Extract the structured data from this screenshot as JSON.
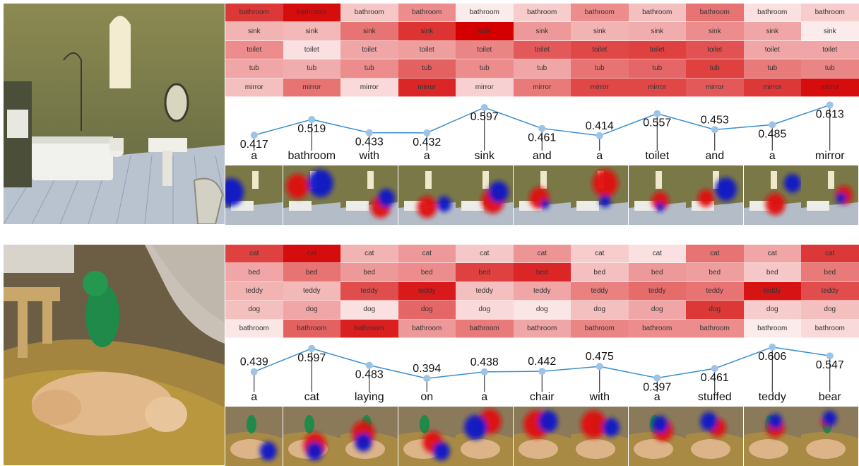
{
  "colors": {
    "line": "#3a8fd0",
    "point": "#9dc3e6",
    "heat_high": "#d40000",
    "heat_low": "#ffffff",
    "blob_red": "#e01010",
    "blob_blue": "#1018c8"
  },
  "panels": [
    {
      "id": "bathroom",
      "image": {
        "name": "bathroom-photo",
        "kind": "bathroom"
      },
      "words": [
        "a",
        "bathroom",
        "with",
        "a",
        "sink",
        "and",
        "a",
        "toilet",
        "and",
        "a",
        "mirror"
      ],
      "concepts": [
        "bathroom",
        "sink",
        "toilet",
        "tub",
        "mirror"
      ],
      "heat": [
        [
          0.78,
          0.3,
          0.45,
          0.35,
          0.25
        ],
        [
          0.95,
          0.28,
          0.12,
          0.32,
          0.55
        ],
        [
          0.22,
          0.55,
          0.35,
          0.45,
          0.15
        ],
        [
          0.45,
          0.8,
          0.38,
          0.62,
          0.85
        ],
        [
          0.08,
          1.0,
          0.48,
          0.45,
          0.18
        ],
        [
          0.2,
          0.4,
          0.65,
          0.35,
          0.52
        ],
        [
          0.45,
          0.3,
          0.72,
          0.55,
          0.72
        ],
        [
          0.25,
          0.32,
          0.75,
          0.6,
          0.72
        ],
        [
          0.55,
          0.45,
          0.68,
          0.75,
          0.65
        ],
        [
          0.12,
          0.35,
          0.35,
          0.52,
          0.78
        ],
        [
          0.2,
          0.08,
          0.35,
          0.48,
          0.95
        ]
      ],
      "chart_data": {
        "type": "line",
        "categories": [
          "a",
          "bathroom",
          "with",
          "a",
          "sink",
          "and",
          "a",
          "toilet",
          "and",
          "a",
          "mirror"
        ],
        "values": [
          0.417,
          0.519,
          0.433,
          0.432,
          0.597,
          0.461,
          0.414,
          0.557,
          0.453,
          0.485,
          0.613
        ],
        "value_labels": [
          "0.417",
          "0.519",
          "0.433",
          "0.432",
          "0.597",
          "0.461",
          "0.414",
          "0.557",
          "0.453",
          "0.485",
          "0.613"
        ],
        "label_position": [
          "below-left",
          "below",
          "below",
          "below",
          "below",
          "below",
          "above",
          "below",
          "above",
          "below",
          "below"
        ],
        "ylim": [
          0.39,
          0.62
        ]
      },
      "attention_maps": [
        {
          "red": [],
          "blue": [
            [
              0.1,
              0.45,
              0.45
            ]
          ]
        },
        {
          "red": [
            [
              0.25,
              0.35,
              0.4
            ]
          ],
          "blue": [
            [
              0.65,
              0.3,
              0.45
            ]
          ]
        },
        {
          "red": [
            [
              0.7,
              0.7,
              0.35
            ]
          ],
          "blue": [
            [
              0.8,
              0.55,
              0.3
            ]
          ]
        },
        {
          "red": [
            [
              0.5,
              0.7,
              0.35
            ]
          ],
          "blue": [
            [
              0.8,
              0.65,
              0.25
            ]
          ]
        },
        {
          "red": [
            [
              0.65,
              0.6,
              0.4
            ]
          ],
          "blue": [
            [
              0.75,
              0.45,
              0.35
            ]
          ]
        },
        {
          "red": [
            [
              0.45,
              0.55,
              0.35
            ]
          ],
          "blue": [
            [
              0.55,
              0.65,
              0.15
            ]
          ]
        },
        {
          "red": [
            [
              0.6,
              0.3,
              0.45
            ]
          ],
          "blue": [
            [
              0.6,
              0.6,
              0.2
            ]
          ]
        },
        {
          "red": [
            [
              0.55,
              0.6,
              0.3
            ]
          ],
          "blue": [
            [
              0.55,
              0.7,
              0.15
            ]
          ]
        },
        {
          "red": [
            [
              0.35,
              0.55,
              0.28
            ]
          ],
          "blue": [
            [
              0.7,
              0.4,
              0.38
            ]
          ]
        },
        {
          "red": [
            [
              0.55,
              0.65,
              0.35
            ]
          ],
          "blue": [
            [
              0.85,
              0.3,
              0.3
            ]
          ]
        },
        {
          "red": [
            [
              0.75,
              0.5,
              0.3
            ]
          ],
          "blue": [
            [
              0.7,
              0.55,
              0.18
            ]
          ]
        }
      ]
    },
    {
      "id": "cat",
      "image": {
        "name": "cat-photo",
        "kind": "cat"
      },
      "words": [
        "a",
        "cat",
        "laying",
        "on",
        "a",
        "chair",
        "with",
        "a",
        "stuffed",
        "teddy",
        "bear"
      ],
      "concepts": [
        "cat",
        "bed",
        "teddy",
        "dog",
        "bathroom"
      ],
      "heat": [
        [
          0.75,
          0.35,
          0.3,
          0.25,
          0.1
        ],
        [
          0.95,
          0.55,
          0.28,
          0.35,
          0.62
        ],
        [
          0.3,
          0.4,
          0.7,
          0.12,
          0.88
        ],
        [
          0.4,
          0.45,
          0.9,
          0.6,
          0.4
        ],
        [
          0.22,
          0.75,
          0.25,
          0.15,
          0.52
        ],
        [
          0.42,
          0.85,
          0.35,
          0.1,
          0.35
        ],
        [
          0.2,
          0.25,
          0.5,
          0.25,
          0.48
        ],
        [
          0.12,
          0.4,
          0.58,
          0.35,
          0.45
        ],
        [
          0.55,
          0.38,
          0.55,
          0.78,
          0.45
        ],
        [
          0.35,
          0.22,
          0.92,
          0.2,
          0.08
        ],
        [
          0.78,
          0.52,
          0.7,
          0.25,
          0.15
        ]
      ],
      "chart_data": {
        "type": "line",
        "categories": [
          "a",
          "cat",
          "laying",
          "on",
          "a",
          "chair",
          "with",
          "a",
          "stuffed",
          "teddy",
          "bear"
        ],
        "values": [
          0.439,
          0.597,
          0.483,
          0.394,
          0.438,
          0.442,
          0.475,
          0.397,
          0.461,
          0.606,
          0.547
        ],
        "value_labels": [
          "0.439",
          "0.597",
          "0.483",
          "0.394",
          "0.438",
          "0.442",
          "0.475",
          "0.397",
          "0.461",
          "0.606",
          "0.547"
        ],
        "label_position": [
          "above",
          "below",
          "below",
          "above",
          "above",
          "above",
          "above",
          "below",
          "below",
          "below",
          "below"
        ],
        "ylim": [
          0.38,
          0.62
        ]
      },
      "attention_maps": [
        {
          "red": [],
          "blue": [
            [
              0.75,
              0.75,
              0.3
            ]
          ]
        },
        {
          "red": [
            [
              0.55,
              0.65,
              0.4
            ]
          ],
          "blue": [
            [
              0.55,
              0.75,
              0.3
            ]
          ]
        },
        {
          "red": [
            [
              0.4,
              0.45,
              0.4
            ]
          ],
          "blue": [
            [
              0.4,
              0.6,
              0.3
            ]
          ]
        },
        {
          "red": [
            [
              0.6,
              0.6,
              0.35
            ]
          ],
          "blue": [
            [
              0.75,
              0.75,
              0.3
            ]
          ]
        },
        {
          "red": [
            [
              0.6,
              0.25,
              0.4
            ]
          ],
          "blue": [
            [
              0.35,
              0.35,
              0.4
            ]
          ]
        },
        {
          "red": [
            [
              0.4,
              0.3,
              0.45
            ]
          ],
          "blue": [
            [
              0.6,
              0.25,
              0.35
            ]
          ]
        },
        {
          "red": [
            [
              0.4,
              0.3,
              0.45
            ]
          ],
          "blue": [
            [
              0.7,
              0.35,
              0.3
            ]
          ]
        },
        {
          "red": [
            [
              0.6,
              0.4,
              0.35
            ]
          ],
          "blue": [
            [
              0.55,
              0.3,
              0.28
            ]
          ]
        },
        {
          "red": [
            [
              0.55,
              0.35,
              0.3
            ]
          ],
          "blue": [
            [
              0.4,
              0.25,
              0.3
            ]
          ]
        },
        {
          "red": [
            [
              0.55,
              0.35,
              0.32
            ]
          ],
          "blue": [
            [
              0.55,
              0.25,
              0.25
            ]
          ]
        },
        {
          "red": [
            [
              0.45,
              0.25,
              0.2
            ]
          ],
          "blue": [
            [
              0.5,
              0.2,
              0.25
            ]
          ]
        }
      ]
    }
  ]
}
